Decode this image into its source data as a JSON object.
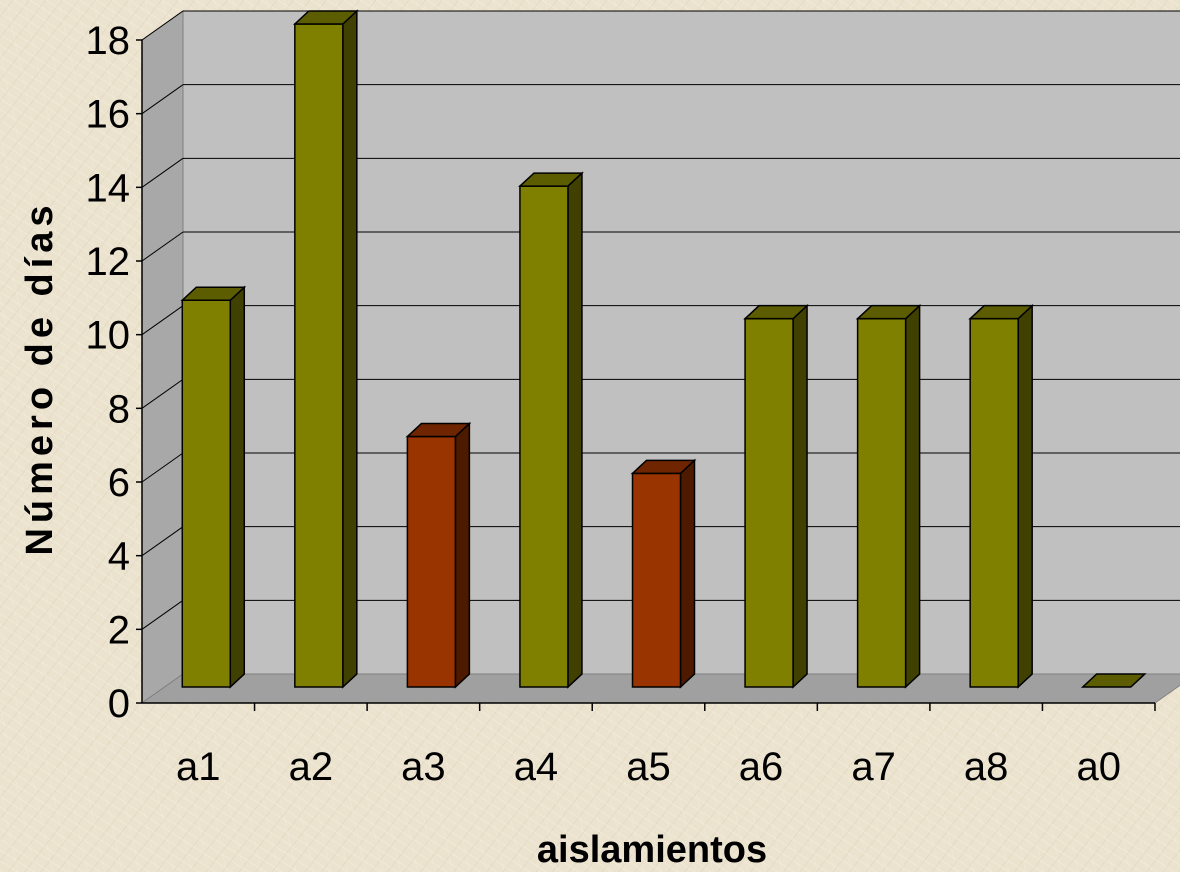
{
  "chart_data": {
    "type": "bar",
    "categories": [
      "a1",
      "a2",
      "a3",
      "a4",
      "a5",
      "a6",
      "a7",
      "a8",
      "a0"
    ],
    "values": [
      10.5,
      18,
      6.8,
      13.6,
      5.8,
      10,
      10,
      10,
      0
    ],
    "bar_colors": [
      "#808000",
      "#808000",
      "#993300",
      "#808000",
      "#993300",
      "#808000",
      "#808000",
      "#808000",
      "#808000"
    ],
    "title": "",
    "xlabel": "aislamientos",
    "ylabel": "Número de días",
    "ylim": [
      0,
      18
    ],
    "yticks": [
      0,
      2,
      4,
      6,
      8,
      10,
      12,
      14,
      16,
      18
    ],
    "grid": true,
    "style": "3d-column"
  }
}
